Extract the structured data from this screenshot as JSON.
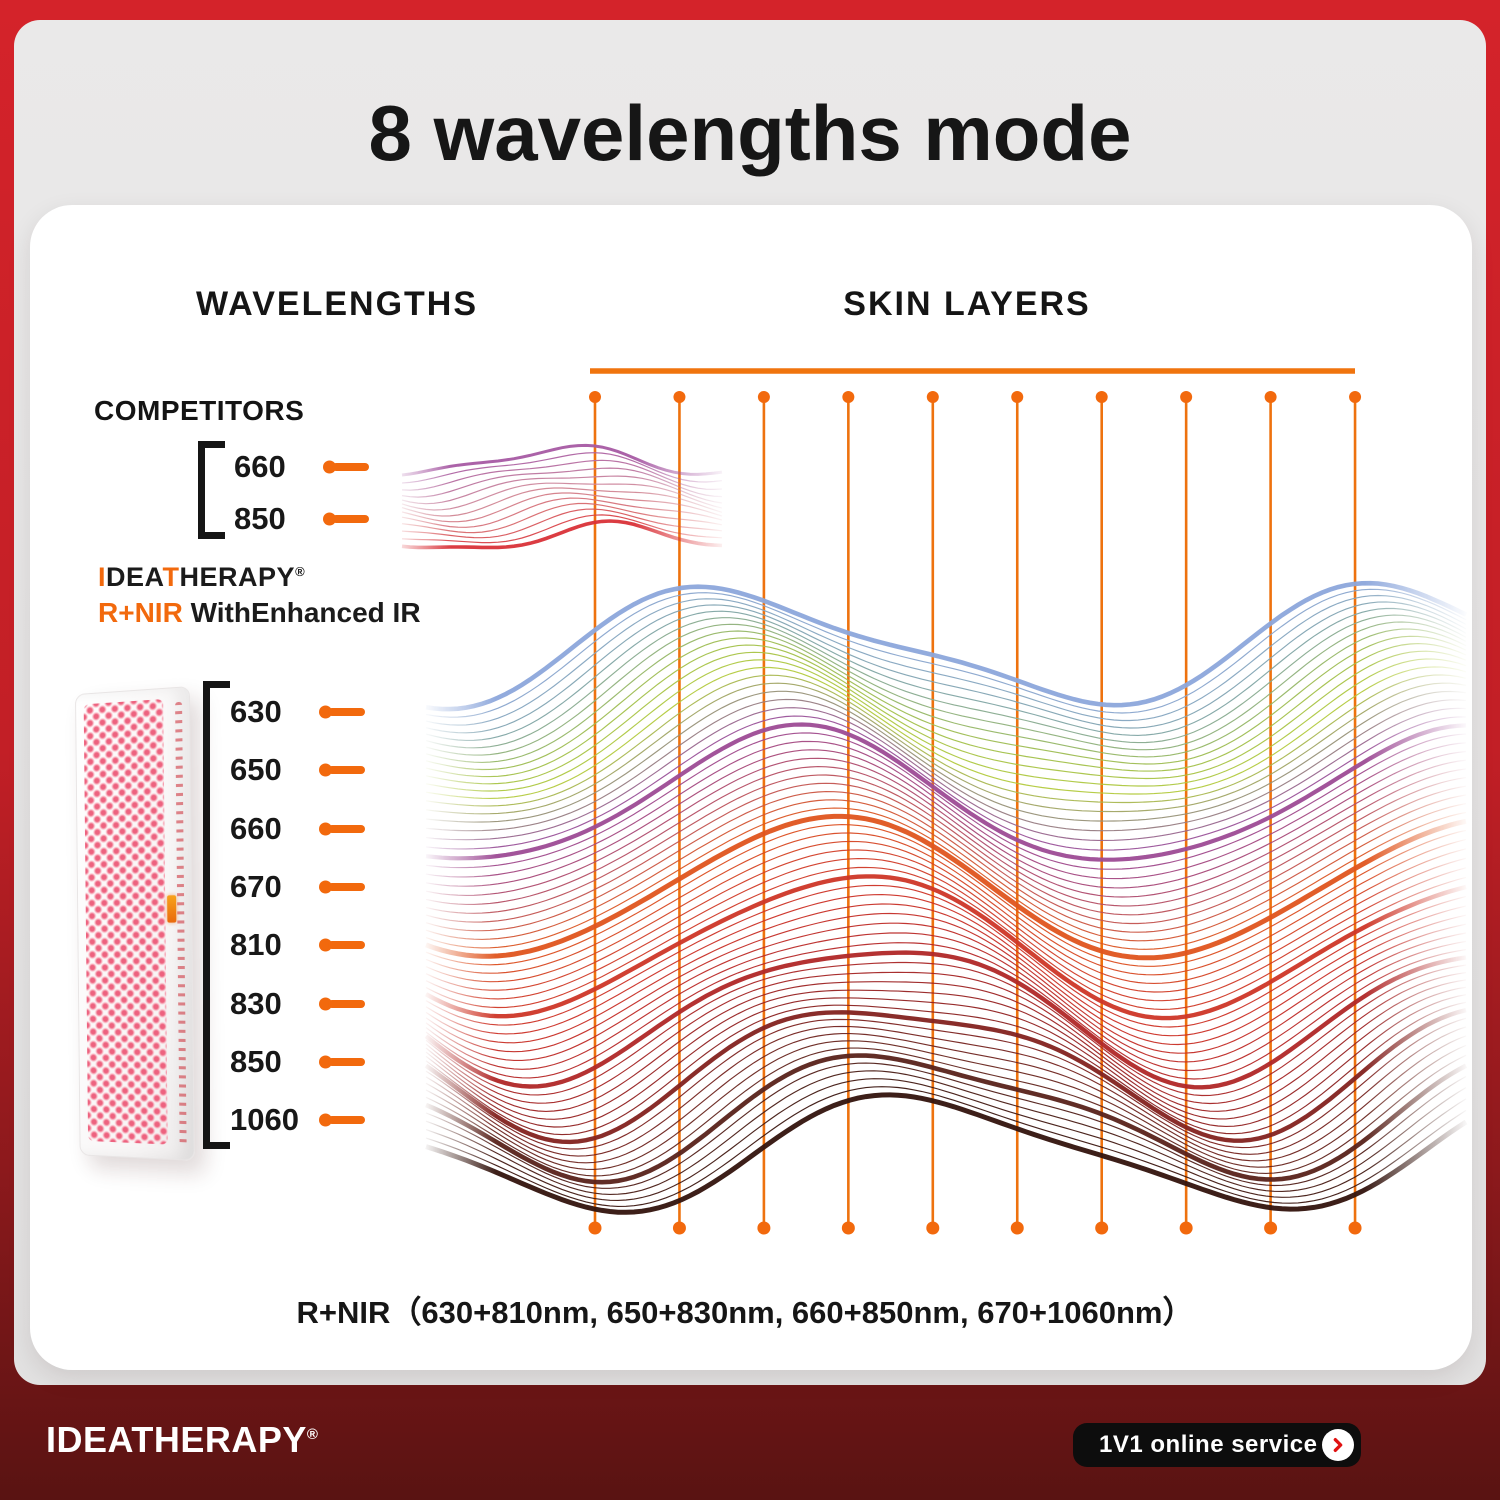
{
  "title": "8 wavelengths mode",
  "diagram": {
    "left_header": "WAVELENGTHS",
    "right_header": "SKIN LAYERS",
    "competitors": {
      "label": "COMPETITORS",
      "wavelengths": [
        "660",
        "850"
      ]
    },
    "brand": {
      "logo_segments": [
        {
          "text": "I",
          "highlight": true
        },
        {
          "text": "DEA",
          "highlight": false
        },
        {
          "text": "T",
          "highlight": true
        },
        {
          "text": "HERAPY",
          "highlight": false
        }
      ],
      "reg_mark": "®",
      "subtitle_highlight": "R+NIR",
      "subtitle_rest": " WithEnhanced IR"
    },
    "device": {
      "wavelengths": [
        "630",
        "650",
        "660",
        "670",
        "810",
        "830",
        "850",
        "1060"
      ]
    },
    "footnote": "R+NIR（630+810nm,  650+830nm,  660+850nm,  670+1060nm）"
  },
  "footer": {
    "logo": "IDEATHERAPY",
    "reg_mark": "®",
    "service_label": "1V1 online service"
  },
  "colors": {
    "accent_orange": "#F2690D",
    "grid_orange": "#EE720E",
    "rule_orange": "#F0740E",
    "title_text": "#161616",
    "frame_red_top": "#D4232A",
    "frame_red_bottom": "#591312",
    "footer_text": "#FFFFFF",
    "chevron_red": "#E01212"
  },
  "waves": {
    "competitors": {
      "count": 13,
      "stops": [
        [
          0,
          "#A65AA3"
        ],
        [
          0.45,
          "#D08C9C"
        ],
        [
          0.75,
          "#D86A6E"
        ],
        [
          1,
          "#D93138"
        ]
      ],
      "thick": {
        "0": 3,
        "12": 3.6
      }
    },
    "main": {
      "count": 64,
      "stops": [
        [
          0,
          "#8CA6DB"
        ],
        [
          0.06,
          "#7FA4A8"
        ],
        [
          0.13,
          "#9FBE4E"
        ],
        [
          0.19,
          "#B3CB3D"
        ],
        [
          0.24,
          "#97907A"
        ],
        [
          0.29,
          "#9A4C9C"
        ],
        [
          0.35,
          "#A84878"
        ],
        [
          0.41,
          "#C25452"
        ],
        [
          0.47,
          "#E0561C"
        ],
        [
          0.54,
          "#D23E28"
        ],
        [
          0.62,
          "#CC3026"
        ],
        [
          0.7,
          "#B62828"
        ],
        [
          0.8,
          "#8E2020"
        ],
        [
          0.9,
          "#63261E"
        ],
        [
          1,
          "#33130D"
        ]
      ],
      "thick": {
        "0": 4.6,
        "19": 4.2,
        "30": 5,
        "37": 4.4,
        "45": 4.4,
        "52": 4.4,
        "58": 4.6,
        "63": 5
      }
    }
  }
}
